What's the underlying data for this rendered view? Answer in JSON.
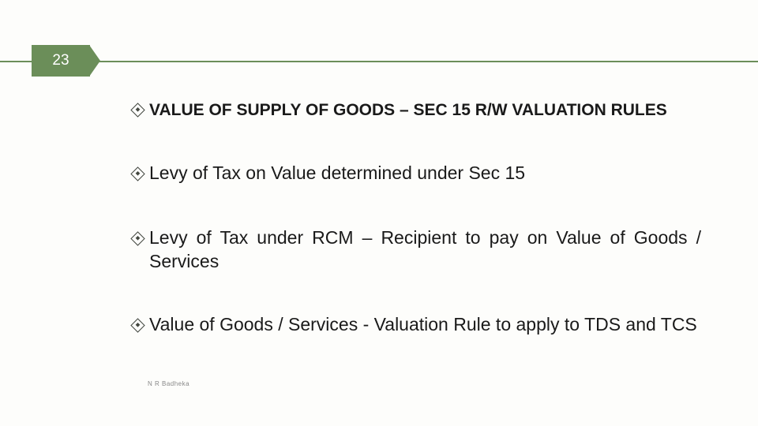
{
  "slide_number": "23",
  "bullets": {
    "b1": "VALUE OF SUPPLY OF GOODS – SEC 15 R/W VALUATION RULES",
    "b2": "Levy of Tax on Value determined under Sec 15",
    "b3": "Levy of Tax under RCM – Recipient to pay on Value of Goods / Services",
    "b4": "Value of Goods / Services - Valuation Rule to apply to TDS and TCS"
  },
  "footer": "N R Badheka",
  "colors": {
    "accent": "#6b8e59",
    "background": "#fdfdfb",
    "text": "#1a1a1a",
    "footer_text": "#888888"
  }
}
